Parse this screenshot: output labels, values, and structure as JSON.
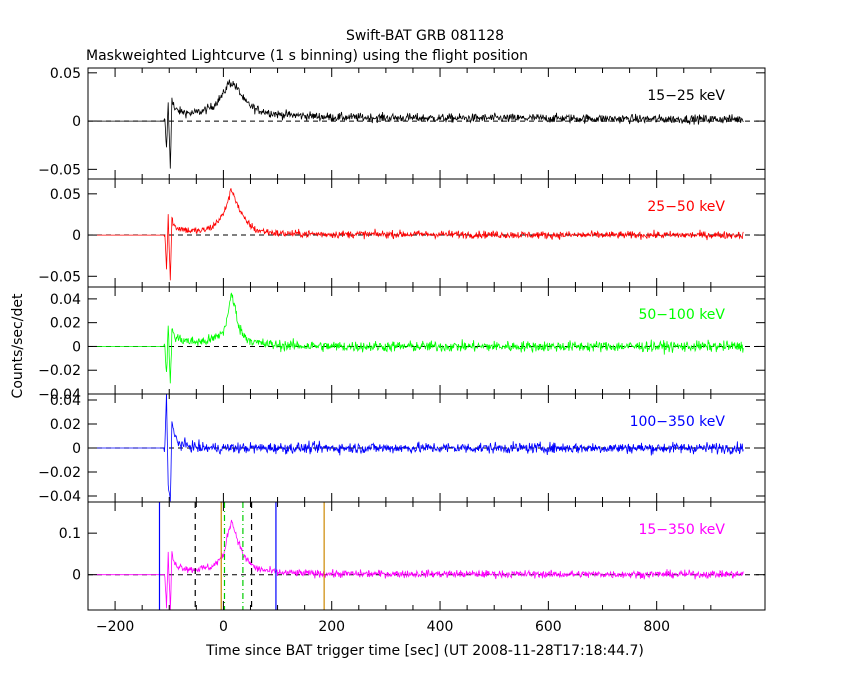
{
  "title": "Swift-BAT GRB 081128",
  "subtitle": "Maskweighted Lightcurve (1 s binning) using the flight position",
  "chart_data": {
    "type": "line",
    "xlabel": "Time since BAT trigger time [sec] (UT 2008-11-28T17:18:44.7)",
    "ylabel": "Counts/sec/det",
    "xlim": [
      -250,
      1000
    ],
    "x_ticks": [
      -200,
      0,
      200,
      400,
      600,
      800
    ],
    "panels": [
      {
        "band": "15−25 keV",
        "color": "#000000",
        "ylim": [
          -0.06,
          0.055
        ],
        "y_ticks": [
          {
            "v": 0.05,
            "label": "0.05"
          },
          {
            "v": 0,
            "label": "0"
          },
          {
            "v": -0.05,
            "label": "−0.05"
          }
        ],
        "noise": 0.0045,
        "peak": {
          "t": 20,
          "amp": 0.026,
          "w": 28
        },
        "x": [
          -240,
          -108,
          -105,
          -102,
          -98,
          -95,
          -90,
          -80,
          -60,
          -40,
          -20,
          0,
          10,
          20,
          30,
          40,
          60,
          100,
          200,
          400,
          600,
          800,
          960
        ],
        "y": [
          0,
          0,
          -0.03,
          0.02,
          -0.05,
          0.025,
          0.012,
          0.01,
          0.008,
          0.01,
          0.015,
          0.028,
          0.04,
          0.038,
          0.03,
          0.02,
          0.012,
          0.007,
          0.004,
          0.003,
          0.003,
          0.002,
          0.002
        ]
      },
      {
        "band": "25−50 keV",
        "color": "#ff0000",
        "ylim": [
          -0.063,
          0.068
        ],
        "y_ticks": [
          {
            "v": 0.05,
            "label": "0.05"
          },
          {
            "v": 0,
            "label": "0"
          },
          {
            "v": -0.05,
            "label": "−0.05"
          }
        ],
        "noise": 0.0045,
        "peak": {
          "t": 15,
          "amp": 0.05,
          "w": 20
        },
        "x": [
          -240,
          -108,
          -105,
          -102,
          -98,
          -95,
          -90,
          -80,
          -60,
          -40,
          -20,
          0,
          10,
          15,
          20,
          30,
          40,
          60,
          100,
          200,
          400,
          600,
          800,
          960
        ],
        "y": [
          0,
          0,
          -0.04,
          0.025,
          -0.055,
          0.02,
          0.01,
          0.008,
          0.005,
          0.005,
          0.01,
          0.025,
          0.045,
          0.055,
          0.048,
          0.03,
          0.018,
          0.006,
          0.002,
          0.001,
          0.001,
          0.0,
          0.0,
          0.0
        ]
      },
      {
        "band": "50−100 keV",
        "color": "#00ff00",
        "ylim": [
          -0.04,
          0.05
        ],
        "y_ticks": [
          {
            "v": 0.04,
            "label": "0.04"
          },
          {
            "v": 0.02,
            "label": "0.02"
          },
          {
            "v": 0,
            "label": "0"
          },
          {
            "v": -0.02,
            "label": "−0.02"
          },
          {
            "v": -0.04,
            "label": "−0.04"
          }
        ],
        "noise": 0.0045,
        "peak": {
          "t": 15,
          "amp": 0.028,
          "w": 16
        },
        "x": [
          -240,
          -108,
          -105,
          -102,
          -98,
          -95,
          -90,
          -80,
          -60,
          -40,
          -20,
          0,
          10,
          15,
          20,
          30,
          40,
          60,
          100,
          200,
          400,
          600,
          800,
          960
        ],
        "y": [
          0,
          0,
          -0.025,
          0.02,
          -0.035,
          0.015,
          0.008,
          0.006,
          0.004,
          0.004,
          0.006,
          0.012,
          0.03,
          0.045,
          0.035,
          0.015,
          0.008,
          0.003,
          0.001,
          0.0,
          0.0,
          0.0,
          0.0,
          0.0
        ]
      },
      {
        "band": "100−350 keV",
        "color": "#0000ff",
        "ylim": [
          -0.045,
          0.045
        ],
        "y_ticks": [
          {
            "v": 0.04,
            "label": "0.04"
          },
          {
            "v": 0.02,
            "label": "0.02"
          },
          {
            "v": 0,
            "label": "0"
          },
          {
            "v": -0.02,
            "label": "−0.02"
          },
          {
            "v": -0.04,
            "label": "−0.04"
          }
        ],
        "noise": 0.0045,
        "peak": {
          "t": 0,
          "amp": 0,
          "w": 10
        },
        "x": [
          -240,
          -108,
          -105,
          -102,
          -98,
          -95,
          -90,
          -80,
          -40,
          0,
          100,
          400,
          800,
          960
        ],
        "y": [
          0,
          0,
          0.045,
          -0.03,
          -0.045,
          0.02,
          0.01,
          0.003,
          0.0,
          0.0,
          0.0,
          0.0,
          0.0,
          0.0
        ]
      },
      {
        "band": "15−350 keV",
        "color": "#ff00ff",
        "ylim": [
          -0.085,
          0.175
        ],
        "y_ticks": [
          {
            "v": 0.1,
            "label": "0.1"
          },
          {
            "v": 0,
            "label": "0"
          }
        ],
        "noise": 0.009,
        "peak": {
          "t": 15,
          "amp": 0.1,
          "w": 22
        },
        "x": [
          -240,
          -108,
          -105,
          -102,
          -98,
          -95,
          -90,
          -80,
          -60,
          -40,
          -20,
          0,
          10,
          15,
          20,
          30,
          40,
          60,
          100,
          200,
          400,
          600,
          800,
          960
        ],
        "y": [
          0,
          0,
          -0.08,
          0.05,
          -0.085,
          0.05,
          0.025,
          0.02,
          0.012,
          0.015,
          0.02,
          0.045,
          0.11,
          0.13,
          0.11,
          0.07,
          0.04,
          0.015,
          0.005,
          0.002,
          0.002,
          0.001,
          0.001,
          0.001
        ],
        "markers": [
          {
            "t": -118,
            "color": "#0000ff",
            "dash": "solid"
          },
          {
            "t": -52,
            "color": "#000000",
            "dash": "dashed"
          },
          {
            "t": -4,
            "color": "#cc8800",
            "dash": "solid"
          },
          {
            "t": 2,
            "color": "#00cc00",
            "dash": "dashdot"
          },
          {
            "t": 36,
            "color": "#00cc00",
            "dash": "dashdot"
          },
          {
            "t": 52,
            "color": "#000000",
            "dash": "dashed"
          },
          {
            "t": 97,
            "color": "#0000ff",
            "dash": "solid"
          },
          {
            "t": 186,
            "color": "#cc8800",
            "dash": "solid"
          }
        ]
      }
    ]
  }
}
